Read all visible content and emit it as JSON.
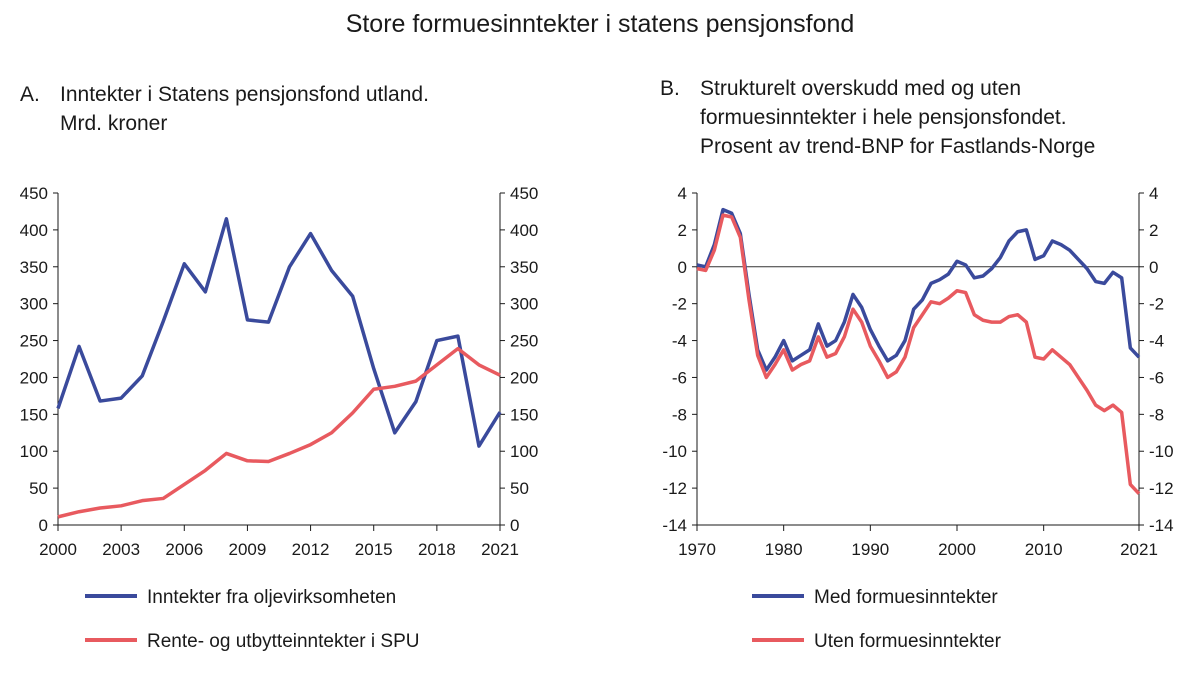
{
  "title": "Store formuesinntekter i statens pensjonsfond",
  "colors": {
    "blue": "#3a4a9c",
    "red": "#e85a5f",
    "axis": "#1a1a1a",
    "zero": "#333333"
  },
  "chart_data": [
    {
      "type": "line",
      "letter": "A.",
      "title_lines": [
        "Inntekter i Statens pensjonsfond utland.",
        "Mrd. kroner"
      ],
      "x": [
        2000,
        2001,
        2002,
        2003,
        2004,
        2005,
        2006,
        2007,
        2008,
        2009,
        2010,
        2011,
        2012,
        2013,
        2014,
        2015,
        2016,
        2017,
        2018,
        2019,
        2020,
        2021
      ],
      "xticks": [
        2000,
        2003,
        2006,
        2009,
        2012,
        2015,
        2018,
        2021
      ],
      "xlim": [
        2000,
        2021
      ],
      "ylim": [
        0,
        450
      ],
      "yticks": [
        0,
        50,
        100,
        150,
        200,
        250,
        300,
        350,
        400,
        450
      ],
      "series": [
        {
          "name": "Inntekter fra oljevirksomheten",
          "color": "#3a4a9c",
          "values": [
            158,
            242,
            168,
            172,
            202,
            276,
            354,
            316,
            415,
            278,
            275,
            350,
            395,
            345,
            310,
            212,
            125,
            167,
            250,
            256,
            107,
            153
          ]
        },
        {
          "name": "Rente- og utbytteinntekter i SPU",
          "color": "#e85a5f",
          "values": [
            11,
            18,
            23,
            26,
            33,
            36,
            55,
            74,
            97,
            87,
            86,
            97,
            109,
            125,
            152,
            184,
            188,
            195,
            217,
            239,
            217,
            203
          ]
        }
      ]
    },
    {
      "type": "line",
      "letter": "B.",
      "title_lines": [
        "Strukturelt overskudd med og uten",
        "formuesinntekter i hele pensjonsfondet.",
        "Prosent av trend-BNP for Fastlands-Norge"
      ],
      "xticks": [
        1970,
        1980,
        1990,
        2000,
        2010,
        2021
      ],
      "xlim": [
        1970,
        2021
      ],
      "ylim": [
        -14,
        4
      ],
      "yticks": [
        4,
        2,
        0,
        -2,
        -4,
        -6,
        -8,
        -10,
        -12,
        -14
      ],
      "ytick_labels": [
        "4",
        "2",
        "0",
        "-2",
        "-4",
        "-6",
        "-8",
        "-10",
        "-12",
        "-14"
      ],
      "series": [
        {
          "name": "Med formuesinntekter",
          "color": "#3a4a9c",
          "points": [
            [
              1970,
              0.1
            ],
            [
              1971,
              0
            ],
            [
              1972,
              1.2
            ],
            [
              1973,
              3.1
            ],
            [
              1974,
              2.9
            ],
            [
              1975,
              1.8
            ],
            [
              1976,
              -1.5
            ],
            [
              1977,
              -4.5
            ],
            [
              1978,
              -5.6
            ],
            [
              1979,
              -4.9
            ],
            [
              1980,
              -4
            ],
            [
              1981,
              -5.1
            ],
            [
              1982,
              -4.8
            ],
            [
              1983,
              -4.5
            ],
            [
              1984,
              -3.1
            ],
            [
              1985,
              -4.3
            ],
            [
              1986,
              -4
            ],
            [
              1987,
              -3
            ],
            [
              1988,
              -1.5
            ],
            [
              1989,
              -2.2
            ],
            [
              1990,
              -3.4
            ],
            [
              1991,
              -4.3
            ],
            [
              1992,
              -5.1
            ],
            [
              1993,
              -4.8
            ],
            [
              1994,
              -4
            ],
            [
              1995,
              -2.3
            ],
            [
              1996,
              -1.8
            ],
            [
              1997,
              -0.9
            ],
            [
              1998,
              -0.7
            ],
            [
              1999,
              -0.4
            ],
            [
              2000,
              0.3
            ],
            [
              2001,
              0.1
            ],
            [
              2002,
              -0.6
            ],
            [
              2003,
              -0.5
            ],
            [
              2004,
              -0.1
            ],
            [
              2005,
              0.5
            ],
            [
              2006,
              1.4
            ],
            [
              2007,
              1.9
            ],
            [
              2008,
              2
            ],
            [
              2009,
              0.4
            ],
            [
              2010,
              0.6
            ],
            [
              2011,
              1.4
            ],
            [
              2012,
              1.2
            ],
            [
              2013,
              0.9
            ],
            [
              2014,
              0.4
            ],
            [
              2015,
              -0.1
            ],
            [
              2016,
              -0.8
            ],
            [
              2017,
              -0.9
            ],
            [
              2018,
              -0.3
            ],
            [
              2019,
              -0.6
            ],
            [
              2020,
              -4.4
            ],
            [
              2021,
              -4.9
            ]
          ]
        },
        {
          "name": "Uten formuesinntekter",
          "color": "#e85a5f",
          "points": [
            [
              1970,
              -0.1
            ],
            [
              1971,
              -0.2
            ],
            [
              1972,
              0.9
            ],
            [
              1973,
              2.8
            ],
            [
              1974,
              2.7
            ],
            [
              1975,
              1.6
            ],
            [
              1976,
              -1.8
            ],
            [
              1977,
              -4.8
            ],
            [
              1978,
              -6
            ],
            [
              1979,
              -5.3
            ],
            [
              1980,
              -4.5
            ],
            [
              1981,
              -5.6
            ],
            [
              1982,
              -5.3
            ],
            [
              1983,
              -5.1
            ],
            [
              1984,
              -3.8
            ],
            [
              1985,
              -4.9
            ],
            [
              1986,
              -4.7
            ],
            [
              1987,
              -3.8
            ],
            [
              1988,
              -2.3
            ],
            [
              1989,
              -3
            ],
            [
              1990,
              -4.3
            ],
            [
              1991,
              -5.1
            ],
            [
              1992,
              -6
            ],
            [
              1993,
              -5.7
            ],
            [
              1994,
              -4.9
            ],
            [
              1995,
              -3.3
            ],
            [
              1996,
              -2.6
            ],
            [
              1997,
              -1.9
            ],
            [
              1998,
              -2
            ],
            [
              1999,
              -1.7
            ],
            [
              2000,
              -1.3
            ],
            [
              2001,
              -1.4
            ],
            [
              2002,
              -2.6
            ],
            [
              2003,
              -2.9
            ],
            [
              2004,
              -3
            ],
            [
              2005,
              -3
            ],
            [
              2006,
              -2.7
            ],
            [
              2007,
              -2.6
            ],
            [
              2008,
              -3
            ],
            [
              2009,
              -4.9
            ],
            [
              2010,
              -5
            ],
            [
              2011,
              -4.5
            ],
            [
              2012,
              -4.9
            ],
            [
              2013,
              -5.3
            ],
            [
              2014,
              -6
            ],
            [
              2015,
              -6.7
            ],
            [
              2016,
              -7.5
            ],
            [
              2017,
              -7.8
            ],
            [
              2018,
              -7.5
            ],
            [
              2019,
              -7.9
            ],
            [
              2020,
              -11.8
            ],
            [
              2021,
              -12.3
            ]
          ]
        }
      ]
    }
  ]
}
